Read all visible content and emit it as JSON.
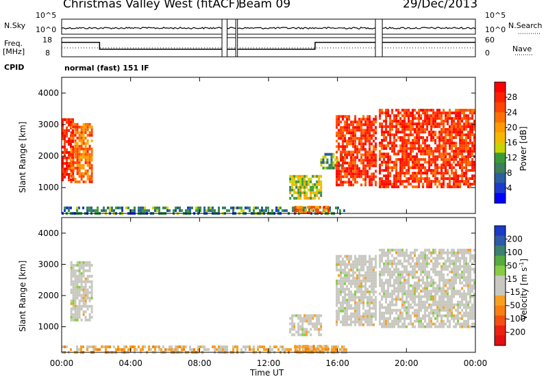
{
  "header": {
    "station": "Christmas Valley West (fitACF)",
    "beam": "Beam 09",
    "date": "29/Dec/2013"
  },
  "status_panel": {
    "nsky_label": "N.Sky",
    "nsearch_label": "N.Search",
    "freq_label": "Freq.",
    "freq_unit": "[MHz]",
    "nave_label": "Nave",
    "cpid_label": "CPID",
    "cpid_value": "normal (fast) 151 IF",
    "noise_left_top": "10^5",
    "noise_left_bottom": "10^0",
    "noise_right_top": "10^5",
    "noise_right_bottom": "10^0",
    "freq_left_top": "18",
    "freq_left_bottom": "8",
    "nave_right_top": "60",
    "nave_right_bottom": "0"
  },
  "power_colorbar": {
    "label": "Power [dB]",
    "ticks": [
      "28",
      "24",
      "20",
      "16",
      "12",
      "8",
      "4"
    ],
    "colors": [
      "#ff0000",
      "#ff2000",
      "#ff4500",
      "#ff7000",
      "#ff9a00",
      "#f5b800",
      "#c8d400",
      "#3a9a3a",
      "#3c7f5a",
      "#2a5fa0",
      "#1a3ad0",
      "#0000ff"
    ]
  },
  "velocity_colorbar": {
    "label": "Velocity [m s",
    "label_sup": "-1",
    "label_end": "]",
    "ticks": [
      "200",
      "100",
      "50",
      "15",
      "-15",
      "-50",
      "-100",
      "-200"
    ],
    "colors": [
      "#1a3ac8",
      "#2e5aa8",
      "#3c8070",
      "#55aa40",
      "#88cc44",
      "#c8c8c0",
      "#c8c8c0",
      "#f7a020",
      "#f78010",
      "#f25010",
      "#ee2010",
      "#e01010"
    ],
    "gray": "#c8c8c0"
  },
  "axes": {
    "ylabel": "Slant Range [km]",
    "xlabel": "Time UT",
    "yticks": [
      "4000",
      "3000",
      "2000",
      "1000"
    ],
    "xticks": [
      "00:00",
      "04:00",
      "08:00",
      "12:00",
      "16:00",
      "20:00",
      "00:00"
    ]
  },
  "chart_data": [
    {
      "type": "heatmap",
      "title": "",
      "xlabel": "",
      "ylabel": "Slant Range [km]",
      "x_range_hours": [
        0,
        24
      ],
      "ylim": [
        180,
        4500
      ],
      "quantity": "Power [dB]",
      "colorbar_range": [
        0,
        30
      ],
      "regions": [
        {
          "t": [
            0.0,
            0.6
          ],
          "r": [
            1250,
            3200
          ],
          "power": 28
        },
        {
          "t": [
            0.5,
            1.8
          ],
          "r": [
            1200,
            3050
          ],
          "power": 22
        },
        {
          "t": [
            13.2,
            15.0
          ],
          "r": [
            700,
            1400
          ],
          "power": 14
        },
        {
          "t": [
            15.0,
            16.2
          ],
          "r": [
            1600,
            2100
          ],
          "power": 10
        },
        {
          "t": [
            15.9,
            18.2
          ],
          "r": [
            1100,
            3300
          ],
          "power": 26
        },
        {
          "t": [
            18.4,
            24.0
          ],
          "r": [
            1000,
            3500
          ],
          "power": 26
        },
        {
          "t": [
            0.0,
            16.5
          ],
          "r": [
            180,
            400
          ],
          "power": 8
        },
        {
          "t": [
            13.5,
            15.5
          ],
          "r": [
            200,
            420
          ],
          "power": 22
        }
      ]
    },
    {
      "type": "heatmap",
      "title": "",
      "xlabel": "Time UT",
      "ylabel": "Slant Range [km]",
      "x_range_hours": [
        0,
        24
      ],
      "ylim": [
        180,
        4500
      ],
      "quantity": "Velocity [m s-1]",
      "colorbar_range": [
        -200,
        200
      ],
      "regions": [
        {
          "t": [
            0.5,
            1.8
          ],
          "r": [
            1250,
            3100
          ],
          "velocity": 0
        },
        {
          "t": [
            13.2,
            15.0
          ],
          "r": [
            700,
            1400
          ],
          "velocity": 0
        },
        {
          "t": [
            15.9,
            18.2
          ],
          "r": [
            1100,
            3300
          ],
          "velocity": 0
        },
        {
          "t": [
            18.4,
            24.0
          ],
          "r": [
            1000,
            3500
          ],
          "velocity": 0
        },
        {
          "t": [
            0.0,
            16.5
          ],
          "r": [
            180,
            400
          ],
          "velocity": -40
        },
        {
          "t": [
            13.5,
            15.5
          ],
          "r": [
            200,
            420
          ],
          "velocity": -60
        }
      ]
    }
  ]
}
